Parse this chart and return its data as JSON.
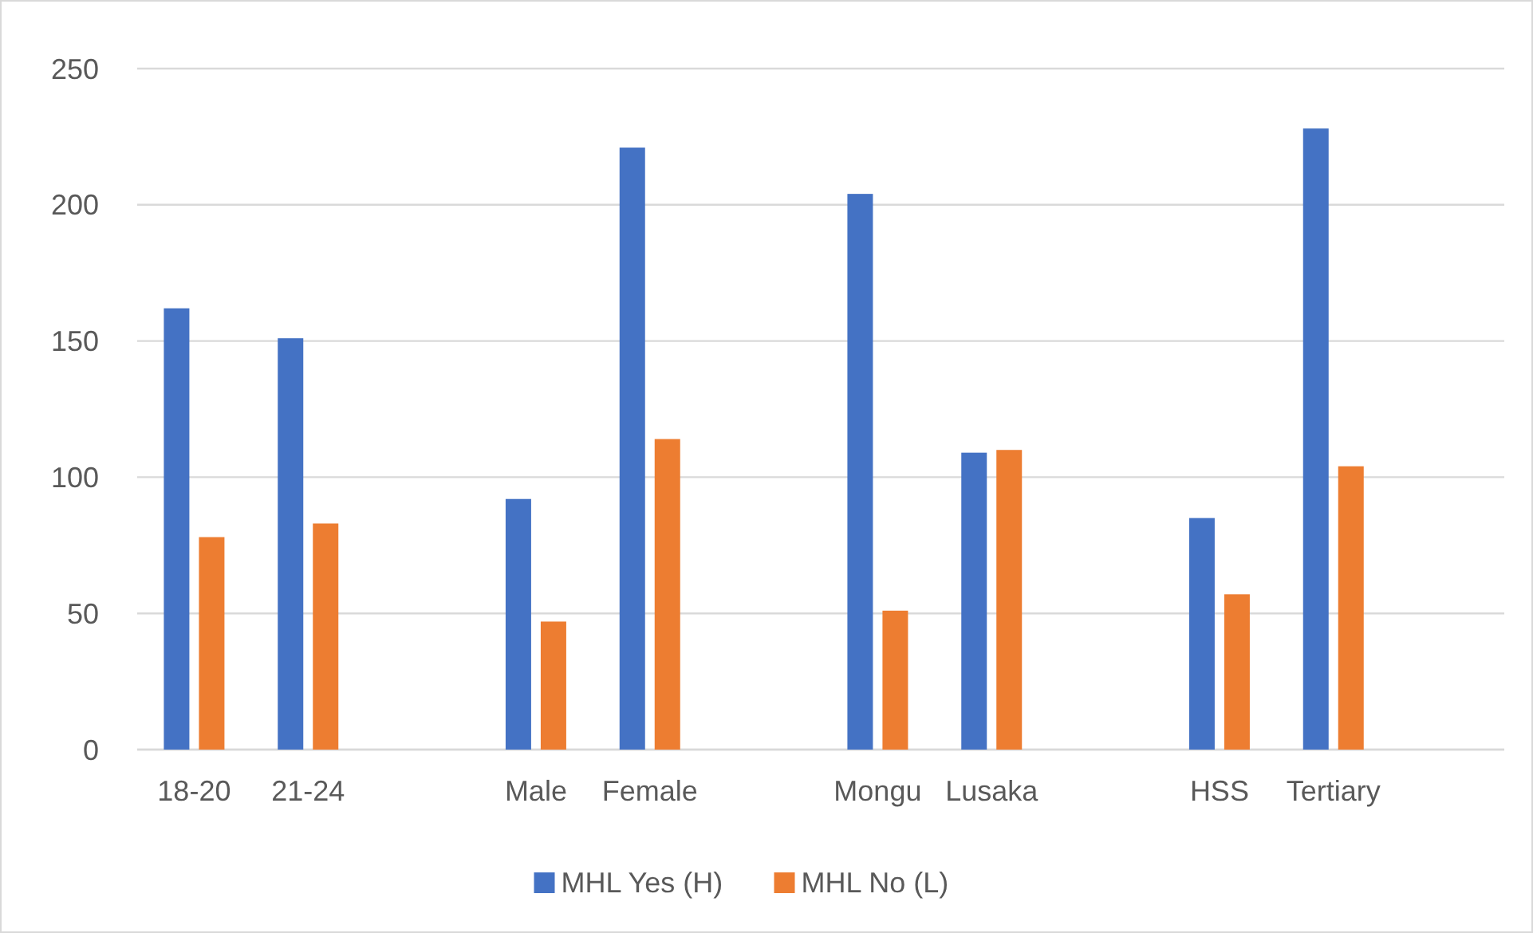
{
  "chart_data": {
    "type": "bar",
    "categories": [
      "18-20",
      "21-24",
      null,
      "Male",
      "Female",
      null,
      "Mongu",
      "Lusaka",
      null,
      "HSS",
      "Tertiary",
      null
    ],
    "series": [
      {
        "name": "MHL Yes (H)",
        "color": "#4472c4",
        "values": [
          162,
          151,
          null,
          92,
          221,
          null,
          204,
          109,
          null,
          85,
          228,
          null
        ]
      },
      {
        "name": "MHL No (L)",
        "color": "#ed7d31",
        "values": [
          78,
          83,
          null,
          47,
          114,
          null,
          51,
          110,
          null,
          57,
          104,
          null
        ]
      }
    ],
    "ylim": [
      0,
      250
    ],
    "yticks": [
      0,
      50,
      100,
      150,
      200,
      250
    ],
    "grid": true,
    "legend": "bottom"
  }
}
